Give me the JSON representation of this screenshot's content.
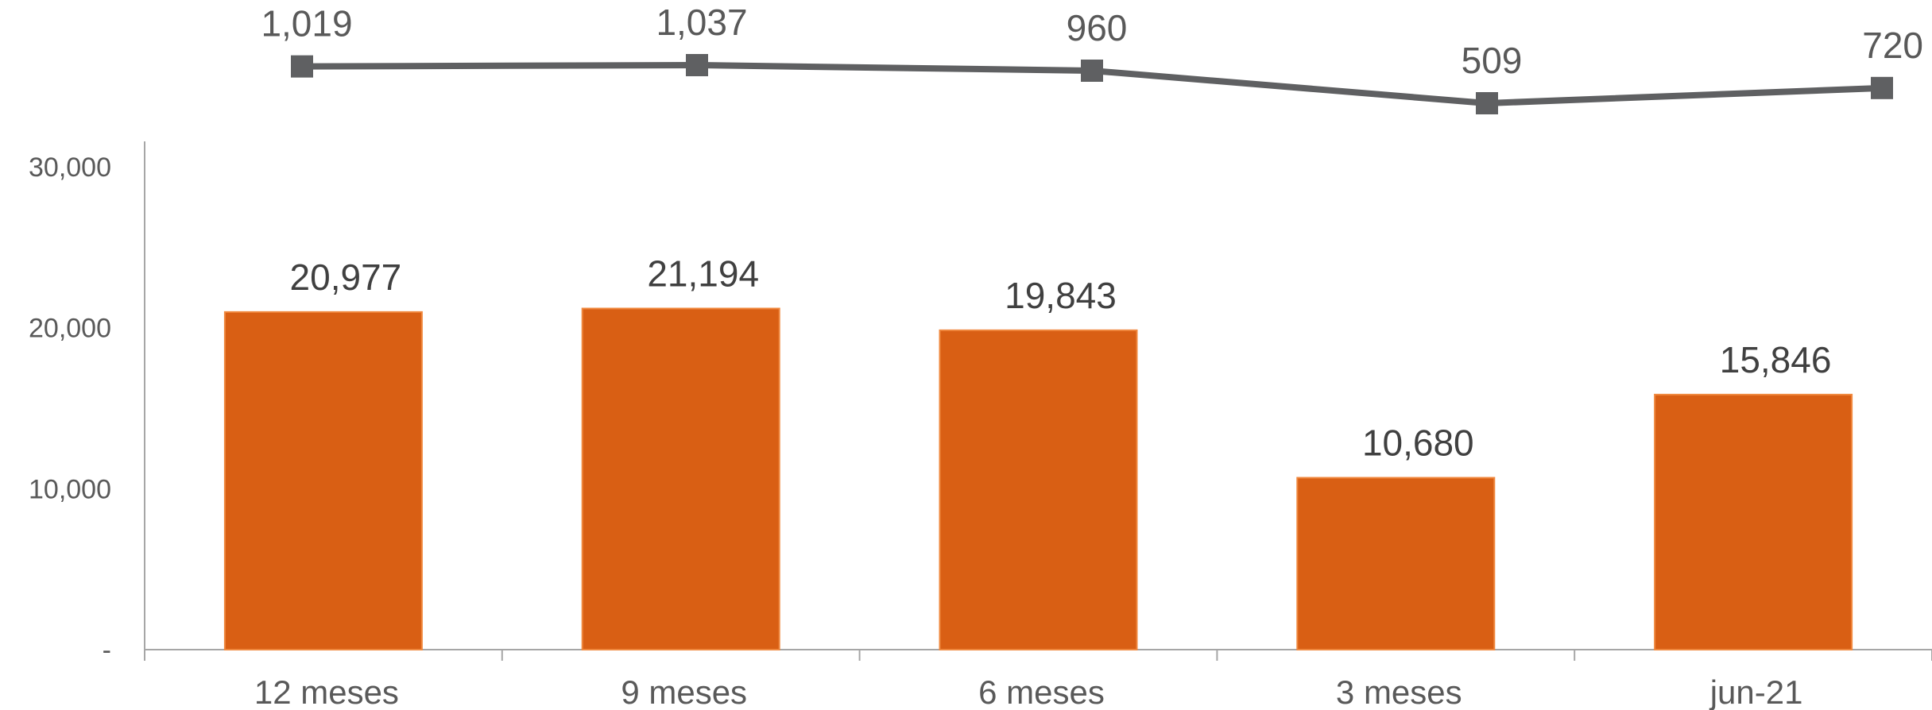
{
  "chart_data": {
    "type": "bar",
    "categories": [
      "12 meses",
      "9 meses",
      "6 meses",
      "3 meses",
      "jun-21"
    ],
    "series": [
      {
        "type": "bar",
        "values": [
          20977,
          21194,
          19843,
          10680,
          15846
        ],
        "labels": [
          "20,977",
          "21,194",
          "19,843",
          "10,680",
          "15,846"
        ],
        "color": "#D95F14"
      },
      {
        "type": "line",
        "values": [
          1019,
          1037,
          960,
          509,
          720
        ],
        "labels": [
          "1,019",
          "1,037",
          "960",
          "509",
          "720"
        ],
        "color": "#5F6062",
        "marker": "square"
      }
    ],
    "y_ticks": [
      "-",
      "10,000",
      "20,000",
      "30,000"
    ],
    "ylim": [
      0,
      30000
    ],
    "title": "",
    "xlabel": "",
    "ylabel": "",
    "grid": false,
    "legend": "none"
  }
}
